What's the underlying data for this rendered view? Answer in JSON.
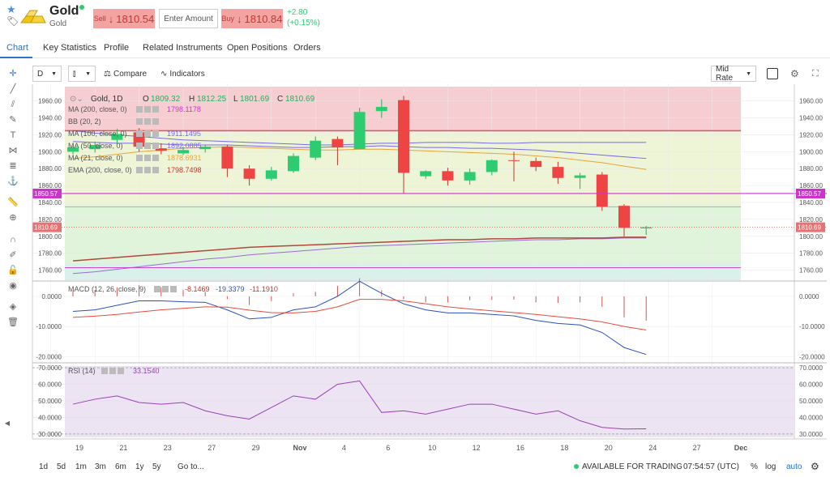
{
  "header": {
    "title": "Gold",
    "subtitle": "Gold",
    "sell_label": "Sell",
    "sell_arrow": "↓",
    "sell_price": "1810.54",
    "amount_placeholder": "Enter Amount",
    "buy_label": "Buy",
    "buy_arrow": "↓",
    "buy_price": "1810.84",
    "change_abs": "+2.80",
    "change_pct": "(+0.15%)"
  },
  "tabs": [
    "Chart",
    "Key Statistics",
    "Profile",
    "Related Instruments",
    "Open Positions",
    "Orders"
  ],
  "toolbar": {
    "interval": "D",
    "chart_type_icon": "candles-icon",
    "compare_label": "Compare",
    "indicators_label": "Indicators",
    "rate_mode": "Mid Rate"
  },
  "legend": {
    "ohlc_title": "Gold, 1D",
    "open_label": "O",
    "open": "1809.32",
    "high_label": "H",
    "high": "1812.25",
    "low_label": "L",
    "low": "1801.69",
    "close_label": "C",
    "close": "1810.69",
    "studies": [
      {
        "name": "MA (200, close, 0)",
        "value": "1798.1178",
        "color": "#cc33cc"
      },
      {
        "name": "BB (20, 2)",
        "value": "",
        "color": "#cc33cc"
      },
      {
        "name": "MA (100, close, 0)",
        "value": "1911.1495",
        "color": "#7b68ee"
      },
      {
        "name": "MA (50, close, 0)",
        "value": "1892.0885",
        "color": "#7b68ee"
      },
      {
        "name": "MA (21, close, 0)",
        "value": "1878.6931",
        "color": "#e8a33c"
      },
      {
        "name": "EMA (200, close, 0)",
        "value": "1798.7498",
        "color": "#c0392b"
      }
    ]
  },
  "price_axis": {
    "ticks": [
      "1960.00",
      "1940.00",
      "1920.00",
      "1900.00",
      "1880.00",
      "1860.00",
      "1840.00",
      "1820.00",
      "1800.00",
      "1780.00",
      "1760.00"
    ],
    "line_label": "1850.57",
    "last_label": "1810.69"
  },
  "macd": {
    "label": "MACD (12, 26, close, 9)",
    "v1": "-8.1469",
    "v2": "-19.3379",
    "v3": "-11.1910",
    "ticks": [
      "0.0000",
      "-10.0000",
      "-20.0000"
    ]
  },
  "rsi": {
    "label": "RSI (14)",
    "value": "33.1540",
    "ticks": [
      "70.0000",
      "60.0000",
      "50.0000",
      "40.0000",
      "30.0000"
    ]
  },
  "x_axis": [
    "19",
    "21",
    "23",
    "27",
    "29",
    "Nov",
    "4",
    "6",
    "10",
    "12",
    "16",
    "18",
    "20",
    "24",
    "27",
    "Dec"
  ],
  "bottom": {
    "ranges": [
      "1d",
      "5d",
      "1m",
      "3m",
      "6m",
      "1y",
      "5y"
    ],
    "goto": "Go to...",
    "status": "AVAILABLE FOR TRADING",
    "time": "07:54:57 (UTC)",
    "pct": "%",
    "log": "log",
    "auto": "auto"
  },
  "chart_data": {
    "type": "candlestick",
    "candles": [
      {
        "o": 1900,
        "h": 1907,
        "l": 1897,
        "c": 1905
      },
      {
        "o": 1903,
        "h": 1912,
        "l": 1899,
        "c": 1908
      },
      {
        "o": 1914,
        "h": 1927,
        "l": 1909,
        "c": 1921
      },
      {
        "o": 1923,
        "h": 1928,
        "l": 1900,
        "c": 1906
      },
      {
        "o": 1904,
        "h": 1910,
        "l": 1897,
        "c": 1901
      },
      {
        "o": 1898,
        "h": 1906,
        "l": 1896,
        "c": 1902
      },
      {
        "o": 1903,
        "h": 1908,
        "l": 1899,
        "c": 1906
      },
      {
        "o": 1906,
        "h": 1908,
        "l": 1870,
        "c": 1880
      },
      {
        "o": 1880,
        "h": 1884,
        "l": 1860,
        "c": 1868
      },
      {
        "o": 1868,
        "h": 1882,
        "l": 1866,
        "c": 1878
      },
      {
        "o": 1877,
        "h": 1898,
        "l": 1875,
        "c": 1895
      },
      {
        "o": 1893,
        "h": 1918,
        "l": 1890,
        "c": 1913
      },
      {
        "o": 1915,
        "h": 1918,
        "l": 1884,
        "c": 1905
      },
      {
        "o": 1903,
        "h": 1952,
        "l": 1903,
        "c": 1947
      },
      {
        "o": 1948,
        "h": 1962,
        "l": 1940,
        "c": 1953
      },
      {
        "o": 1961,
        "h": 1966,
        "l": 1850,
        "c": 1875
      },
      {
        "o": 1871,
        "h": 1878,
        "l": 1868,
        "c": 1877
      },
      {
        "o": 1877,
        "h": 1881,
        "l": 1860,
        "c": 1866
      },
      {
        "o": 1866,
        "h": 1880,
        "l": 1861,
        "c": 1876
      },
      {
        "o": 1876,
        "h": 1891,
        "l": 1872,
        "c": 1890
      },
      {
        "o": 1890,
        "h": 1900,
        "l": 1865,
        "c": 1889
      },
      {
        "o": 1889,
        "h": 1893,
        "l": 1877,
        "c": 1882
      },
      {
        "o": 1882,
        "h": 1888,
        "l": 1862,
        "c": 1869
      },
      {
        "o": 1869,
        "h": 1875,
        "l": 1856,
        "c": 1872
      },
      {
        "o": 1873,
        "h": 1876,
        "l": 1830,
        "c": 1835
      },
      {
        "o": 1836,
        "h": 1838,
        "l": 1800,
        "c": 1810
      },
      {
        "o": 1809.32,
        "h": 1812.25,
        "l": 1801.69,
        "c": 1810.69
      }
    ],
    "ylim": [
      1750,
      1975
    ],
    "horizontal_line": 1850.57,
    "ema200": [
      1771,
      1773,
      1775,
      1777,
      1779,
      1781,
      1783,
      1785,
      1787,
      1788,
      1789,
      1790,
      1791,
      1792,
      1793,
      1794,
      1795,
      1796,
      1796,
      1797,
      1797,
      1798,
      1798,
      1798,
      1798,
      1799,
      1799
    ],
    "ma200": [
      1756,
      1758,
      1761,
      1764,
      1767,
      1770,
      1773,
      1775,
      1778,
      1780,
      1782,
      1784,
      1786,
      1788,
      1789,
      1790,
      1791,
      1792,
      1793,
      1794,
      1795,
      1796,
      1796,
      1797,
      1797,
      1798,
      1798
    ],
    "ma100": [
      1925,
      1922,
      1920,
      1918,
      1916,
      1914,
      1913,
      1912,
      1911,
      1910,
      1909,
      1908,
      1908,
      1909,
      1910,
      1910,
      1911,
      1911,
      1911,
      1910,
      1910,
      1911,
      1911,
      1911,
      1911,
      1911,
      1911
    ],
    "ma50": [
      1912,
      1911,
      1910,
      1910,
      1909,
      1908,
      1908,
      1908,
      1907,
      1906,
      1905,
      1905,
      1906,
      1906,
      1907,
      1906,
      1905,
      1905,
      1904,
      1904,
      1903,
      1902,
      1900,
      1898,
      1896,
      1894,
      1892
    ],
    "ma21": [
      1892,
      1894,
      1897,
      1900,
      1902,
      1904,
      1905,
      1906,
      1905,
      1904,
      1903,
      1902,
      1902,
      1903,
      1903,
      1902,
      1901,
      1900,
      1899,
      1898,
      1897,
      1895,
      1893,
      1890,
      1887,
      1883,
      1879
    ],
    "macd_line": [
      -5,
      -4.5,
      -3,
      -1.5,
      -1.5,
      -1.8,
      -2.0,
      -4.5,
      -7.5,
      -7.0,
      -4.5,
      -3.5,
      0,
      5,
      1,
      -2.5,
      -4.5,
      -5.5,
      -5.5,
      -6.0,
      -6.5,
      -8.0,
      -9.0,
      -9.5,
      -12,
      -17,
      -19.3
    ],
    "signal_line": [
      -7,
      -6.6,
      -6.0,
      -5.2,
      -4.5,
      -4.0,
      -3.5,
      -3.6,
      -4.6,
      -5.4,
      -5.5,
      -5.0,
      -3.5,
      -1,
      -1,
      -1.5,
      -2.5,
      -3.5,
      -4.2,
      -4.8,
      -5.4,
      -6.0,
      -6.8,
      -7.5,
      -8.5,
      -10,
      -11.2
    ],
    "macd_ylim": [
      -21,
      4
    ],
    "rsi": [
      48,
      51,
      53,
      49,
      48,
      49,
      44,
      41,
      39,
      46,
      53,
      51,
      60,
      62,
      43,
      44,
      42,
      45,
      48,
      48,
      45,
      42,
      44,
      38,
      34,
      33,
      33.15
    ],
    "rsi_ylim": [
      28,
      71
    ]
  }
}
